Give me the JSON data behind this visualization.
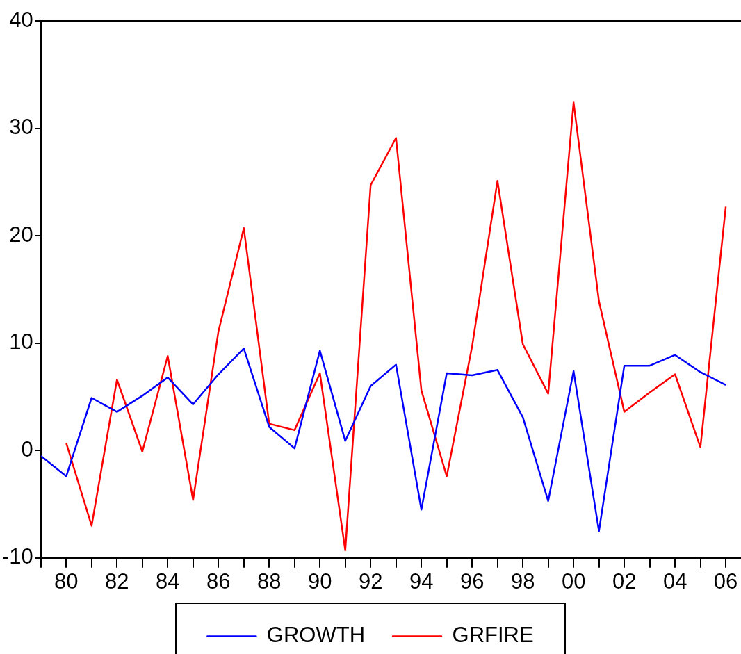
{
  "chart_data": {
    "type": "line",
    "x": [
      1979,
      1980,
      1981,
      1982,
      1983,
      1984,
      1985,
      1986,
      1987,
      1988,
      1989,
      1990,
      1991,
      1992,
      1993,
      1994,
      1995,
      1996,
      1997,
      1998,
      1999,
      2000,
      2001,
      2002,
      2003,
      2004,
      2005,
      2006
    ],
    "series": [
      {
        "name": "GROWTH",
        "color": "#0000ff",
        "values": [
          -0.5,
          -2.4,
          4.9,
          3.6,
          5.1,
          6.8,
          4.3,
          7.1,
          9.5,
          2.2,
          0.2,
          9.3,
          0.9,
          6.0,
          8.0,
          -5.5,
          7.2,
          7.0,
          7.5,
          3.1,
          -4.7,
          7.4,
          -7.5,
          7.9,
          7.9,
          8.9,
          7.3,
          6.1
        ]
      },
      {
        "name": "GRFIRE",
        "color": "#ff0000",
        "values": [
          null,
          0.7,
          -7.0,
          6.6,
          -0.1,
          8.8,
          -4.6,
          11.1,
          20.7,
          2.5,
          1.9,
          7.2,
          -9.3,
          24.7,
          29.1,
          5.6,
          -2.4,
          9.7,
          25.1,
          9.9,
          5.3,
          32.4,
          13.9,
          3.6,
          5.4,
          7.1,
          0.3,
          22.7
        ]
      }
    ],
    "xlim": [
      1979,
      2006.6
    ],
    "xticks": [
      {
        "value": 1979,
        "label": null
      },
      {
        "value": 1980,
        "label": "80"
      },
      {
        "value": 1981,
        "label": null
      },
      {
        "value": 1982,
        "label": "82"
      },
      {
        "value": 1983,
        "label": null
      },
      {
        "value": 1984,
        "label": "84"
      },
      {
        "value": 1985,
        "label": null
      },
      {
        "value": 1986,
        "label": "86"
      },
      {
        "value": 1987,
        "label": null
      },
      {
        "value": 1988,
        "label": "88"
      },
      {
        "value": 1989,
        "label": null
      },
      {
        "value": 1990,
        "label": "90"
      },
      {
        "value": 1991,
        "label": null
      },
      {
        "value": 1992,
        "label": "92"
      },
      {
        "value": 1993,
        "label": null
      },
      {
        "value": 1994,
        "label": "94"
      },
      {
        "value": 1995,
        "label": null
      },
      {
        "value": 1996,
        "label": "96"
      },
      {
        "value": 1997,
        "label": null
      },
      {
        "value": 1998,
        "label": "98"
      },
      {
        "value": 1999,
        "label": null
      },
      {
        "value": 2000,
        "label": "00"
      },
      {
        "value": 2001,
        "label": null
      },
      {
        "value": 2002,
        "label": "02"
      },
      {
        "value": 2003,
        "label": null
      },
      {
        "value": 2004,
        "label": "04"
      },
      {
        "value": 2005,
        "label": null
      },
      {
        "value": 2006,
        "label": "06"
      }
    ],
    "ylim": [
      -10,
      40
    ],
    "yticks": [
      -10,
      0,
      10,
      20,
      30,
      40
    ],
    "grid": false,
    "legend": "bottom",
    "marker": "none",
    "line_style": "solid"
  }
}
